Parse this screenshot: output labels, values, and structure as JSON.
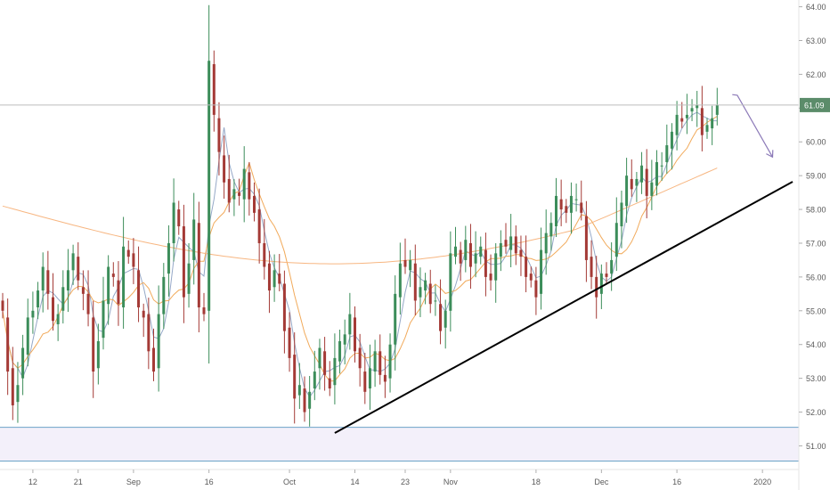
{
  "chart_data": {
    "type": "candlestick",
    "title": "",
    "xlabel": "",
    "ylabel": "",
    "ylim": [
      50.3,
      64.2
    ],
    "y_ticks": [
      "51.00",
      "52.00",
      "53.00",
      "54.00",
      "55.00",
      "56.00",
      "57.00",
      "58.00",
      "59.00",
      "60.00",
      "61.00",
      "62.00",
      "63.00",
      "64.00"
    ],
    "x_ticks": [
      {
        "label": "12",
        "i": 6
      },
      {
        "label": "21",
        "i": 15
      },
      {
        "label": "Sep",
        "i": 26
      },
      {
        "label": "16",
        "i": 41
      },
      {
        "label": "Oct",
        "i": 57
      },
      {
        "label": "14",
        "i": 70
      },
      {
        "label": "23",
        "i": 80
      },
      {
        "label": "Nov",
        "i": 89
      },
      {
        "label": "18",
        "i": 106
      },
      {
        "label": "Dec",
        "i": 119
      },
      {
        "label": "16",
        "i": 134
      },
      {
        "label": "2020",
        "i": 151
      }
    ],
    "last_price": "61.09",
    "colors": {
      "up": "#3c8d5a",
      "down": "#a43a36",
      "ma_short": "#8fa3c4",
      "ma_mid": "#f0a552",
      "ma_long": "#f7b27a",
      "support_zone": "#f3f0fa",
      "support_line": "#6ba3c7",
      "trendline": "#000000",
      "projection": "#8c7ab8",
      "price_line": "#bdbdbd",
      "price_label": "#5b8c6a"
    },
    "support_zone": [
      50.55,
      51.55
    ],
    "trendline": {
      "from": {
        "i": 66,
        "y": 51.38
      },
      "to": {
        "i": 157,
        "y": 58.82
      }
    },
    "projection_path": [
      {
        "i": 145,
        "y": 61.4
      },
      {
        "i": 146,
        "y": 61.38
      },
      {
        "i": 153,
        "y": 59.55
      }
    ],
    "closes": [
      55.0,
      53.2,
      52.2,
      52.8,
      53.9,
      54.8,
      55.0,
      55.6,
      56.3,
      55.5,
      54.7,
      54.9,
      55.7,
      56.2,
      56.7,
      55.9,
      55.5,
      54.9,
      53.2,
      54.1,
      55.3,
      56.3,
      56.0,
      55.2,
      56.9,
      56.6,
      56.3,
      55.1,
      54.8,
      53.8,
      53.2,
      54.9,
      56.0,
      57.0,
      58.2,
      57.5,
      55.4,
      56.4,
      57.7,
      55.1,
      54.9,
      62.4,
      60.8,
      59.7,
      58.8,
      58.2,
      58.6,
      58.4,
      59.2,
      58.3,
      57.9,
      57.0,
      56.3,
      55.6,
      56.2,
      55.8,
      54.4,
      53.6,
      52.4,
      52.8,
      52.0,
      52.6,
      53.2,
      53.9,
      53.1,
      52.7,
      53.6,
      54.1,
      54.3,
      54.9,
      53.8,
      53.3,
      52.6,
      53.3,
      53.8,
      53.1,
      52.9,
      54.0,
      55.5,
      56.4,
      56.3,
      56.5,
      55.3,
      55.7,
      55.9,
      55.2,
      55.3,
      54.4,
      55.0,
      56.7,
      56.9,
      56.4,
      57.1,
      56.3,
      56.7,
      56.9,
      56.0,
      55.9,
      56.7,
      57.0,
      56.9,
      57.2,
      56.7,
      56.6,
      56.0,
      55.9,
      55.4,
      56.8,
      57.3,
      57.6,
      58.4,
      58.0,
      57.9,
      58.4,
      58.3,
      57.9,
      56.5,
      56.0,
      55.4,
      56.1,
      56.0,
      56.5,
      57.6,
      58.2,
      59.0,
      58.6,
      58.9,
      59.3,
      58.4,
      58.8,
      59.4,
      59.3,
      59.9,
      60.3,
      60.8,
      60.6,
      60.8,
      61.0,
      61.1,
      60.2,
      60.5,
      60.7,
      61.09
    ],
    "opens": [
      55.3,
      54.8,
      53.3,
      52.3,
      53.0,
      53.7,
      54.8,
      55.1,
      55.6,
      56.2,
      55.4,
      54.6,
      55.0,
      55.6,
      56.2,
      56.6,
      55.7,
      55.5,
      54.8,
      53.3,
      54.2,
      55.2,
      56.1,
      55.9,
      55.1,
      56.8,
      56.7,
      56.2,
      55.0,
      54.9,
      53.9,
      53.3,
      54.9,
      56.1,
      57.0,
      58.0,
      57.5,
      55.5,
      56.5,
      57.6,
      55.1,
      55.0,
      62.3,
      60.7,
      59.6,
      58.9,
      58.3,
      58.5,
      58.3,
      59.1,
      58.4,
      58.0,
      57.0,
      56.4,
      55.7,
      56.1,
      55.8,
      54.5,
      53.7,
      52.5,
      52.7,
      52.1,
      52.7,
      53.3,
      53.8,
      53.0,
      52.8,
      53.5,
      54.0,
      54.3,
      54.8,
      53.9,
      53.2,
      52.7,
      53.2,
      53.8,
      53.1,
      53.0,
      54.0,
      55.4,
      56.5,
      56.2,
      56.4,
      55.4,
      55.6,
      55.8,
      55.3,
      55.2,
      54.5,
      55.0,
      56.6,
      56.8,
      56.5,
      57.0,
      56.4,
      56.6,
      56.8,
      56.1,
      55.9,
      56.6,
      57.1,
      56.8,
      57.2,
      56.8,
      56.6,
      56.1,
      55.9,
      55.5,
      56.7,
      57.2,
      57.5,
      58.3,
      58.1,
      57.9,
      58.3,
      58.2,
      57.8,
      56.6,
      56.0,
      55.5,
      56.1,
      56.1,
      56.6,
      57.5,
      58.1,
      58.9,
      58.7,
      58.8,
      59.2,
      58.4,
      58.7,
      59.3,
      59.4,
      59.8,
      60.2,
      60.7,
      60.7,
      60.9,
      61.0,
      61.0,
      60.3,
      60.4,
      60.8
    ]
  }
}
